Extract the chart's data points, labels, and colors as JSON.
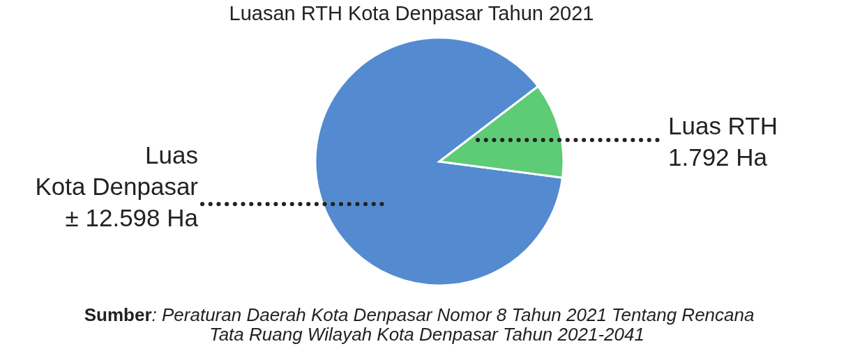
{
  "chart_data": {
    "type": "pie",
    "title": "Luasan RTH Kota Denpasar Tahun 2021",
    "categories": [
      "Luas Kota Denpasar",
      "Luas RTH"
    ],
    "values": [
      12598,
      1792
    ],
    "value_labels": [
      "± 12.598 Ha",
      "1.792 Ha"
    ],
    "colors": [
      "#548bd0",
      "#5ecb76"
    ],
    "annotations": [
      "Sumber: Peraturan Daerah Kota Denpasar Nomor 8 Tahun 2021 Tentang Rencana Tata Ruang Wilayah Kota Denpasar Tahun 2021-2041"
    ]
  }
}
